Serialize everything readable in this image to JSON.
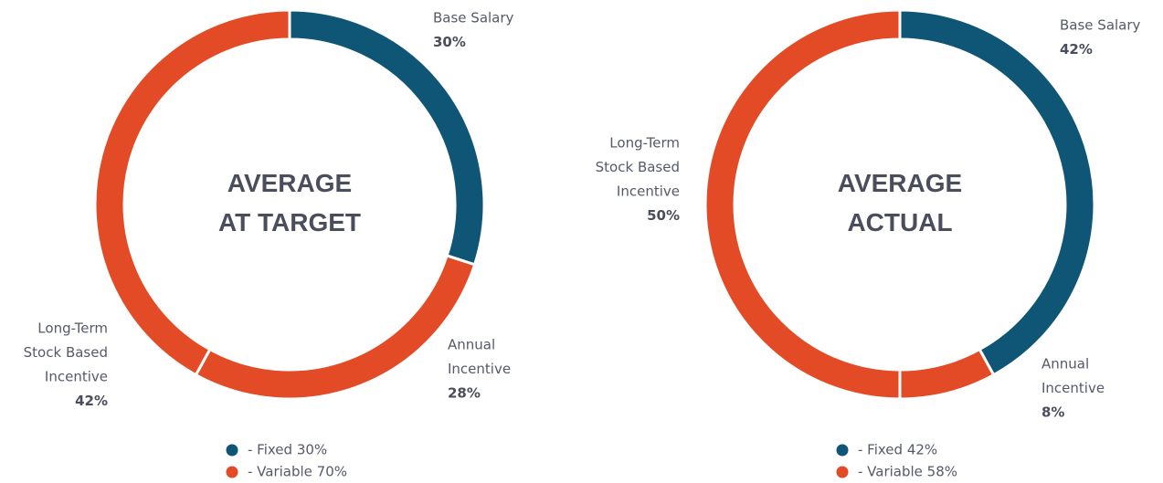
{
  "chart_data": [
    {
      "type": "pie",
      "center_title": [
        "AVERAGE",
        "AT TARGET"
      ],
      "categories": [
        [
          "Base Salary"
        ],
        [
          "Annual",
          "Incentive"
        ],
        [
          "Long-Term",
          "Stock Based",
          "Incentive"
        ]
      ],
      "values": [
        30,
        28,
        42
      ],
      "value_labels": [
        "30%",
        "28%",
        "42%"
      ],
      "colors": [
        "#0f5575",
        "#e34a26",
        "#e34a26"
      ],
      "legend": [
        {
          "label": "-  Fixed 30%",
          "color": "#0f5575"
        },
        {
          "label": "-  Variable 70%",
          "color": "#e34a26"
        }
      ]
    },
    {
      "type": "pie",
      "center_title": [
        "AVERAGE",
        "ACTUAL"
      ],
      "categories": [
        [
          "Base Salary"
        ],
        [
          "Annual",
          "Incentive"
        ],
        [
          "Long-Term",
          "Stock Based",
          "Incentive"
        ]
      ],
      "values": [
        42,
        8,
        50
      ],
      "value_labels": [
        "42%",
        "8%",
        "50%"
      ],
      "colors": [
        "#0f5575",
        "#e34a26",
        "#e34a26"
      ],
      "legend": [
        {
          "label": "-  Fixed 42%",
          "color": "#0f5575"
        },
        {
          "label": "-  Variable 58%",
          "color": "#e34a26"
        }
      ]
    }
  ]
}
